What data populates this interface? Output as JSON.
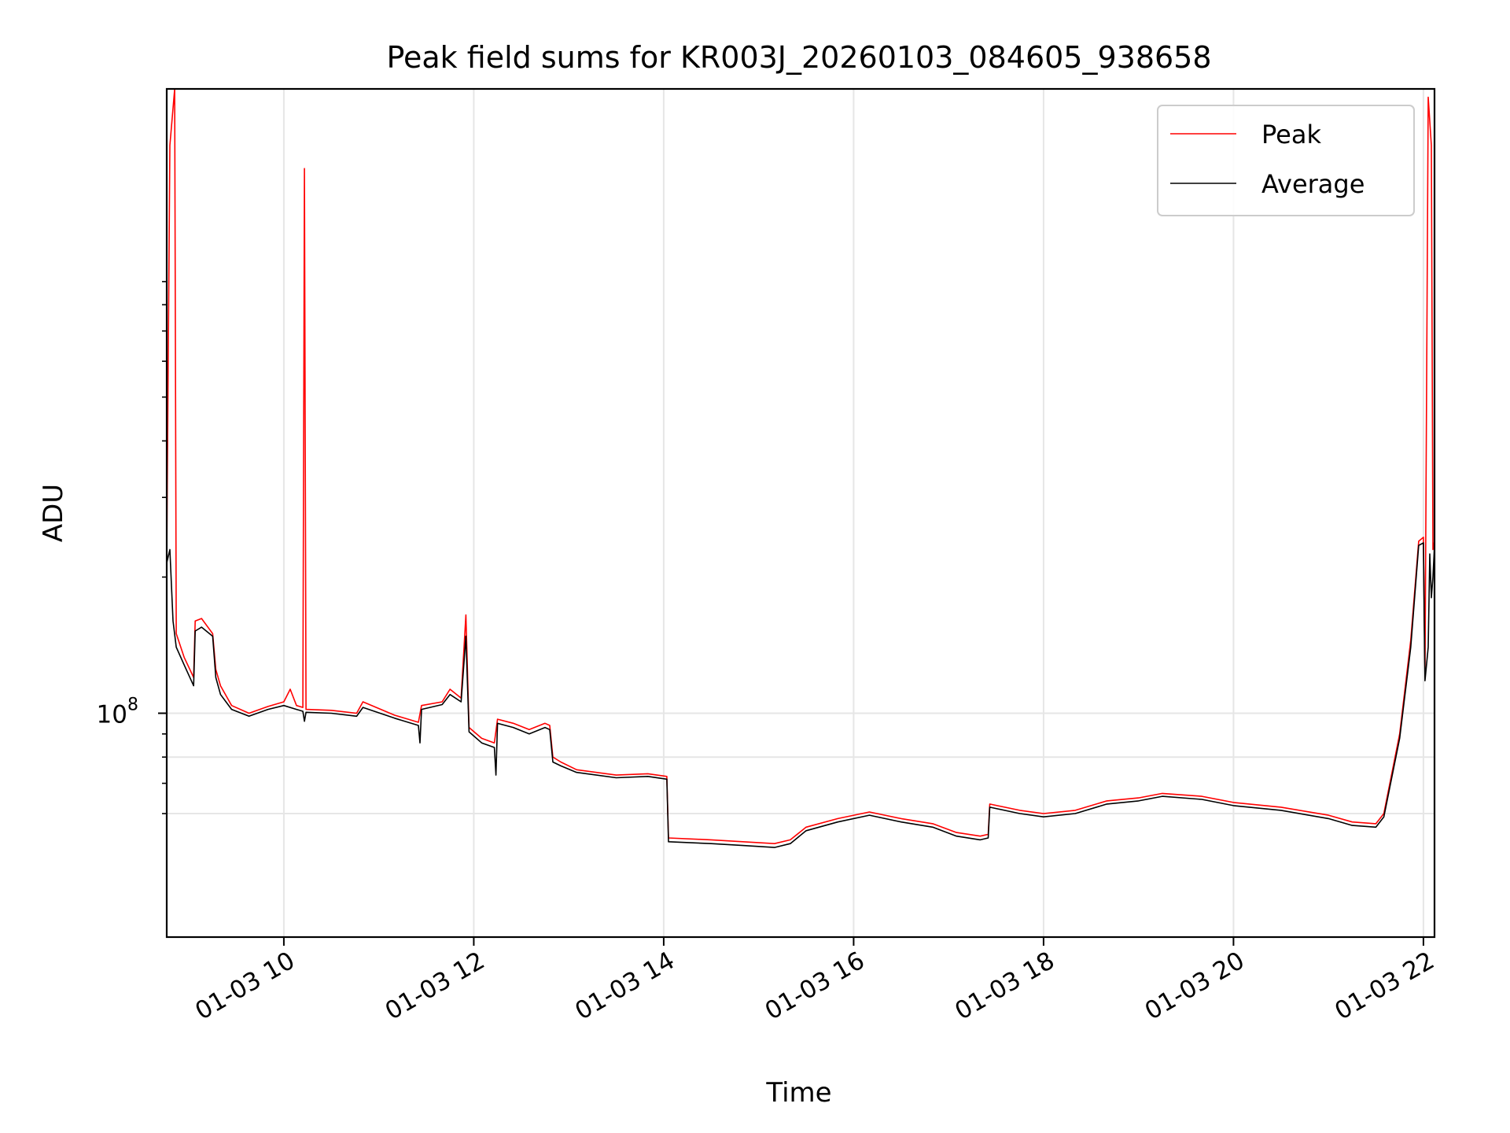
{
  "chart_data": {
    "type": "line",
    "title": "Peak field sums for KR003J_20260103_084605_938658",
    "xlabel": "Time",
    "ylabel": "ADU",
    "yscale": "log",
    "grid": true,
    "legend_position": "top-right",
    "xlim": [
      "01-03 08:46",
      "01-03 22:07"
    ],
    "ylim": [
      32000000,
      2400000000
    ],
    "x_ticks": [
      {
        "value": "01-03 10:00",
        "label": "01-03 10"
      },
      {
        "value": "01-03 12:00",
        "label": "01-03 12"
      },
      {
        "value": "01-03 14:00",
        "label": "01-03 14"
      },
      {
        "value": "01-03 16:00",
        "label": "01-03 16"
      },
      {
        "value": "01-03 18:00",
        "label": "01-03 18"
      },
      {
        "value": "01-03 20:00",
        "label": "01-03 20"
      },
      {
        "value": "01-03 22:00",
        "label": "01-03 22"
      }
    ],
    "y_major_ticks": [
      {
        "value": 100000000,
        "base": "10",
        "exp": "8"
      }
    ],
    "y_minor_ticks": [
      60000000,
      70000000,
      80000000,
      90000000,
      200000000,
      300000000,
      400000000,
      500000000,
      600000000,
      700000000,
      800000000,
      900000000
    ],
    "y_minor_grid": [
      60000000,
      80000000
    ],
    "series": [
      {
        "name": "Peak",
        "color": "#ff0000",
        "points": [
          [
            "01-03 08:46",
            220000000
          ],
          [
            "01-03 08:48",
            1800000000
          ],
          [
            "01-03 08:51",
            2400000000
          ],
          [
            "01-03 08:52",
            150000000
          ],
          [
            "01-03 08:57",
            133000000
          ],
          [
            "01-03 09:03",
            120000000
          ],
          [
            "01-03 09:04",
            160000000
          ],
          [
            "01-03 09:08",
            162000000
          ],
          [
            "01-03 09:15",
            150000000
          ],
          [
            "01-03 09:17",
            125000000
          ],
          [
            "01-03 09:20",
            115000000
          ],
          [
            "01-03 09:27",
            104000000
          ],
          [
            "01-03 09:38",
            100000000
          ],
          [
            "01-03 09:50",
            103500000
          ],
          [
            "01-03 10:00",
            106000000
          ],
          [
            "01-03 10:04",
            113000000
          ],
          [
            "01-03 10:08",
            104000000
          ],
          [
            "01-03 10:12",
            103000000
          ],
          [
            "01-03 10:13",
            1600000000
          ],
          [
            "01-03 10:14",
            102000000
          ],
          [
            "01-03 10:30",
            101500000
          ],
          [
            "01-03 10:46",
            100000000
          ],
          [
            "01-03 10:50",
            106000000
          ],
          [
            "01-03 11:10",
            99000000
          ],
          [
            "01-03 11:25",
            95500000
          ],
          [
            "01-03 11:27",
            104000000
          ],
          [
            "01-03 11:40",
            106000000
          ],
          [
            "01-03 11:45",
            113000000
          ],
          [
            "01-03 11:52",
            108000000
          ],
          [
            "01-03 11:55",
            165000000
          ],
          [
            "01-03 11:57",
            93000000
          ],
          [
            "01-03 12:05",
            88000000
          ],
          [
            "01-03 12:13",
            86000000
          ],
          [
            "01-03 12:15",
            97000000
          ],
          [
            "01-03 12:25",
            95000000
          ],
          [
            "01-03 12:35",
            92000000
          ],
          [
            "01-03 12:45",
            95000000
          ],
          [
            "01-03 12:48",
            94000000
          ],
          [
            "01-03 12:50",
            80000000
          ],
          [
            "01-03 12:55",
            78000000
          ],
          [
            "01-03 13:05",
            75000000
          ],
          [
            "01-03 13:30",
            73000000
          ],
          [
            "01-03 13:50",
            73500000
          ],
          [
            "01-03 14:02",
            72500000
          ],
          [
            "01-03 14:03",
            53000000
          ],
          [
            "01-03 14:30",
            52500000
          ],
          [
            "01-03 14:50",
            52000000
          ],
          [
            "01-03 15:10",
            51500000
          ],
          [
            "01-03 15:20",
            52500000
          ],
          [
            "01-03 15:30",
            56000000
          ],
          [
            "01-03 15:50",
            58500000
          ],
          [
            "01-03 16:10",
            60500000
          ],
          [
            "01-03 16:30",
            58500000
          ],
          [
            "01-03 16:50",
            57000000
          ],
          [
            "01-03 17:05",
            54500000
          ],
          [
            "01-03 17:20",
            53500000
          ],
          [
            "01-03 17:25",
            54000000
          ],
          [
            "01-03 17:26",
            63000000
          ],
          [
            "01-03 17:45",
            61000000
          ],
          [
            "01-03 18:00",
            60000000
          ],
          [
            "01-03 18:20",
            61000000
          ],
          [
            "01-03 18:40",
            64000000
          ],
          [
            "01-03 19:00",
            65000000
          ],
          [
            "01-03 19:15",
            66500000
          ],
          [
            "01-03 19:40",
            65500000
          ],
          [
            "01-03 20:00",
            63500000
          ],
          [
            "01-03 20:30",
            62000000
          ],
          [
            "01-03 21:00",
            59500000
          ],
          [
            "01-03 21:15",
            57500000
          ],
          [
            "01-03 21:30",
            57000000
          ],
          [
            "01-03 21:35",
            60000000
          ],
          [
            "01-03 21:45",
            90000000
          ],
          [
            "01-03 21:52",
            145000000
          ],
          [
            "01-03 21:57",
            240000000
          ],
          [
            "01-03 22:00",
            245000000
          ],
          [
            "01-03 22:01",
            120000000
          ],
          [
            "01-03 22:03",
            2300000000
          ],
          [
            "01-03 22:05",
            1800000000
          ],
          [
            "01-03 22:06",
            230000000
          ],
          [
            "01-03 22:07",
            240000000
          ]
        ]
      },
      {
        "name": "Average",
        "color": "#000000",
        "points": [
          [
            "01-03 08:46",
            215000000
          ],
          [
            "01-03 08:48",
            230000000
          ],
          [
            "01-03 08:50",
            160000000
          ],
          [
            "01-03 08:52",
            140000000
          ],
          [
            "01-03 08:57",
            128000000
          ],
          [
            "01-03 09:03",
            115000000
          ],
          [
            "01-03 09:04",
            152000000
          ],
          [
            "01-03 09:08",
            155000000
          ],
          [
            "01-03 09:15",
            148000000
          ],
          [
            "01-03 09:17",
            120000000
          ],
          [
            "01-03 09:20",
            110000000
          ],
          [
            "01-03 09:27",
            102000000
          ],
          [
            "01-03 09:38",
            98500000
          ],
          [
            "01-03 09:50",
            102000000
          ],
          [
            "01-03 10:00",
            104000000
          ],
          [
            "01-03 10:08",
            102000000
          ],
          [
            "01-03 10:12",
            101000000
          ],
          [
            "01-03 10:13",
            96000000
          ],
          [
            "01-03 10:14",
            100500000
          ],
          [
            "01-03 10:30",
            100000000
          ],
          [
            "01-03 10:46",
            98500000
          ],
          [
            "01-03 10:50",
            103000000
          ],
          [
            "01-03 11:10",
            97500000
          ],
          [
            "01-03 11:25",
            94000000
          ],
          [
            "01-03 11:26",
            86000000
          ],
          [
            "01-03 11:27",
            102000000
          ],
          [
            "01-03 11:40",
            104500000
          ],
          [
            "01-03 11:45",
            110000000
          ],
          [
            "01-03 11:52",
            106000000
          ],
          [
            "01-03 11:55",
            148000000
          ],
          [
            "01-03 11:57",
            91000000
          ],
          [
            "01-03 12:05",
            86000000
          ],
          [
            "01-03 12:13",
            84000000
          ],
          [
            "01-03 12:14",
            73000000
          ],
          [
            "01-03 12:15",
            95000000
          ],
          [
            "01-03 12:25",
            93000000
          ],
          [
            "01-03 12:35",
            90000000
          ],
          [
            "01-03 12:45",
            93000000
          ],
          [
            "01-03 12:48",
            92000000
          ],
          [
            "01-03 12:50",
            78000000
          ],
          [
            "01-03 12:55",
            76500000
          ],
          [
            "01-03 13:05",
            74000000
          ],
          [
            "01-03 13:30",
            72000000
          ],
          [
            "01-03 13:50",
            72500000
          ],
          [
            "01-03 14:02",
            71500000
          ],
          [
            "01-03 14:03",
            52000000
          ],
          [
            "01-03 14:30",
            51500000
          ],
          [
            "01-03 14:50",
            51000000
          ],
          [
            "01-03 15:10",
            50500000
          ],
          [
            "01-03 15:20",
            51500000
          ],
          [
            "01-03 15:30",
            55000000
          ],
          [
            "01-03 15:50",
            57500000
          ],
          [
            "01-03 16:10",
            59500000
          ],
          [
            "01-03 16:30",
            57500000
          ],
          [
            "01-03 16:50",
            56000000
          ],
          [
            "01-03 17:05",
            53500000
          ],
          [
            "01-03 17:20",
            52500000
          ],
          [
            "01-03 17:25",
            53000000
          ],
          [
            "01-03 17:26",
            62000000
          ],
          [
            "01-03 17:45",
            60000000
          ],
          [
            "01-03 18:00",
            59000000
          ],
          [
            "01-03 18:20",
            60000000
          ],
          [
            "01-03 18:40",
            63000000
          ],
          [
            "01-03 19:00",
            64000000
          ],
          [
            "01-03 19:15",
            65500000
          ],
          [
            "01-03 19:40",
            64500000
          ],
          [
            "01-03 20:00",
            62500000
          ],
          [
            "01-03 20:30",
            61000000
          ],
          [
            "01-03 21:00",
            58500000
          ],
          [
            "01-03 21:15",
            56500000
          ],
          [
            "01-03 21:30",
            56000000
          ],
          [
            "01-03 21:35",
            59000000
          ],
          [
            "01-03 21:45",
            88000000
          ],
          [
            "01-03 21:52",
            140000000
          ],
          [
            "01-03 21:57",
            235000000
          ],
          [
            "01-03 22:00",
            238000000
          ],
          [
            "01-03 22:01",
            118000000
          ],
          [
            "01-03 22:03",
            140000000
          ],
          [
            "01-03 22:04",
            225000000
          ],
          [
            "01-03 22:05",
            180000000
          ],
          [
            "01-03 22:06",
            200000000
          ],
          [
            "01-03 22:07",
            235000000
          ]
        ]
      }
    ]
  }
}
